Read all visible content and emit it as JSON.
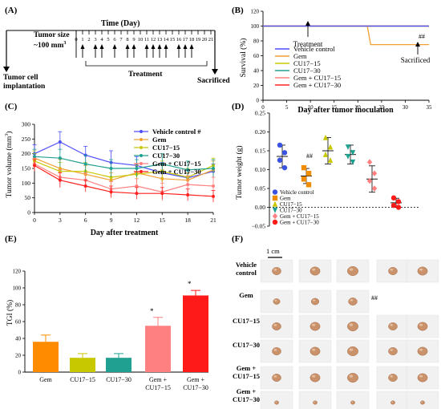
{
  "panels": {
    "A": {
      "label": "(A)",
      "time_title": "Time (Day)",
      "tumor_size_line1": "Tumor size",
      "tumor_size_line2": "~100 mm",
      "tumor_size_sup": "3",
      "implant_line1": "Tumor cell",
      "implant_line2": "implantation",
      "days": [
        "0",
        "1",
        "2",
        "3",
        "4",
        "5",
        "6",
        "7",
        "8",
        "9",
        "10",
        "11",
        "12",
        "13",
        "14",
        "15",
        "16",
        "17",
        "18",
        "19",
        "20",
        "21"
      ],
      "treatment_days": [
        1,
        3,
        4,
        6,
        8,
        9,
        11,
        12,
        13,
        14,
        16,
        17,
        18
      ],
      "treatment_label": "Treatment",
      "sacrificed_label": "Sacrificed"
    },
    "B": {
      "label": "(B)",
      "ylabel": "Survival (%)",
      "xlabel": "Day after tumor inoculation",
      "treatment_label": "Treatment",
      "sacrificed_label": "Sacrificed",
      "significance": "##",
      "legend": [
        "Vehicle control",
        "Gem",
        "CU17−15",
        "CU17−30",
        "Gem + CU17−15",
        "Gem + CU17−30"
      ],
      "colors": [
        "#4d4dff",
        "#f0a030",
        "#c8c800",
        "#20a090",
        "#ff8080",
        "#ff2020"
      ],
      "yticks": [
        "0",
        "20",
        "40",
        "60",
        "80",
        "100",
        "120"
      ],
      "xticks": [
        "0",
        "5",
        "10",
        "15",
        "20",
        "25",
        "30",
        "35"
      ]
    },
    "C": {
      "label": "(C)",
      "ylabel": "Tumor volume (mm",
      "ylabel_sup": "3",
      "ylabel_end": ")",
      "xlabel": "Day after treatment",
      "legend": [
        "Vehicle control #",
        "Gem",
        "CU17−15",
        "CU17−30",
        "Gem + CU17−15",
        "Gem + CU17−30"
      ],
      "yticks": [
        "0",
        "50",
        "100",
        "150",
        "200",
        "250",
        "300"
      ],
      "xticks": [
        "0",
        "3",
        "6",
        "9",
        "12",
        "15",
        "18",
        "21"
      ]
    },
    "D": {
      "label": "(D)",
      "ylabel": "Tumor weight (g)",
      "yticks": [
        "−0.05",
        "0.00",
        "0.05",
        "0.10",
        "0.15",
        "0.20",
        "0.25"
      ],
      "significance": "##",
      "legend": [
        "Vehicle control",
        "Gem",
        "CU17−15",
        "CU17−30",
        "Gem + CU17−15",
        "Gem + CU17−30"
      ]
    },
    "E": {
      "label": "(E)",
      "ylabel": "TGI (%)",
      "yticks": [
        "0",
        "20",
        "40",
        "60",
        "80",
        "100",
        "120"
      ],
      "categories": [
        "Gem",
        "CU17−15",
        "CU17−30",
        "Gem +\nCU17−15",
        "Gem +\nCU17−30"
      ],
      "star": "*"
    },
    "F": {
      "label": "(F)",
      "scale_label": "1 cm",
      "rows": [
        "Vehicle\ncontrol",
        "Gem",
        "CU17−15",
        "CU17−30",
        "Gem +\nCU17−15",
        "Gem +\nCU17−30"
      ],
      "gem_mark": "##",
      "tumors_per_row": [
        5,
        3,
        5,
        5,
        5,
        5
      ]
    }
  },
  "chart_data": [
    {
      "panel": "B",
      "type": "line",
      "xlabel": "Day after tumor inoculation",
      "ylabel": "Survival (%)",
      "xlim": [
        0,
        35
      ],
      "ylim": [
        0,
        120
      ],
      "series": [
        {
          "name": "Vehicle control",
          "x": [
            0,
            35
          ],
          "y": [
            100,
            100
          ]
        },
        {
          "name": "Gem",
          "x": [
            0,
            22,
            22.7,
            35
          ],
          "y": [
            100,
            100,
            75,
            75
          ]
        },
        {
          "name": "CU17−15",
          "x": [
            0,
            35
          ],
          "y": [
            100,
            100
          ]
        },
        {
          "name": "CU17−30",
          "x": [
            0,
            35
          ],
          "y": [
            100,
            100
          ]
        },
        {
          "name": "Gem + CU17−15",
          "x": [
            0,
            35
          ],
          "y": [
            100,
            100
          ]
        },
        {
          "name": "Gem + CU17−30",
          "x": [
            0,
            35
          ],
          "y": [
            100,
            100
          ]
        }
      ]
    },
    {
      "panel": "C",
      "type": "line",
      "xlabel": "Day after treatment",
      "ylabel": "Tumor volume (mm3)",
      "x": [
        0,
        3,
        6,
        9,
        12,
        15,
        18,
        21
      ],
      "ylim": [
        0,
        300
      ],
      "series": [
        {
          "name": "Vehicle control #",
          "values": [
            200,
            240,
            195,
            170,
            160,
            135,
            118,
            140
          ],
          "err": [
            30,
            35,
            30,
            40,
            30,
            35,
            25,
            25
          ]
        },
        {
          "name": "Gem",
          "values": [
            185,
            150,
            130,
            110,
            135,
            115,
            110,
            145
          ],
          "err": [
            25,
            30,
            30,
            25,
            30,
            30,
            25,
            30
          ]
        },
        {
          "name": "CU17−15",
          "values": [
            175,
            140,
            140,
            120,
            130,
            140,
            120,
            160
          ],
          "err": [
            25,
            30,
            30,
            30,
            30,
            35,
            30,
            25
          ]
        },
        {
          "name": "CU17−30",
          "values": [
            190,
            185,
            165,
            150,
            150,
            165,
            145,
            150
          ],
          "err": [
            25,
            30,
            30,
            30,
            30,
            35,
            30,
            30
          ]
        },
        {
          "name": "Gem + CU17−15",
          "values": [
            165,
            120,
            110,
            80,
            90,
            70,
            95,
            90
          ],
          "err": [
            20,
            25,
            25,
            25,
            25,
            30,
            30,
            30
          ]
        },
        {
          "name": "Gem + CU17−30",
          "values": [
            160,
            110,
            90,
            70,
            65,
            65,
            60,
            55
          ],
          "err": [
            20,
            25,
            20,
            20,
            20,
            20,
            20,
            20
          ]
        }
      ]
    },
    {
      "panel": "D",
      "type": "scatter",
      "ylabel": "Tumor weight (g)",
      "ylim": [
        -0.05,
        0.25
      ],
      "groups": [
        {
          "name": "Vehicle control",
          "points": [
            0.165,
            0.145,
            0.125,
            0.105
          ],
          "mean": 0.135,
          "sd": 0.03
        },
        {
          "name": "Gem",
          "points": [
            0.105,
            0.09,
            0.075,
            0.06
          ],
          "mean": 0.083,
          "sd": 0.02
        },
        {
          "name": "CU17−15",
          "points": [
            0.185,
            0.16,
            0.14,
            0.125
          ],
          "mean": 0.15,
          "sd": 0.035
        },
        {
          "name": "CU17−30",
          "points": [
            0.16,
            0.145,
            0.135,
            0.12
          ],
          "mean": 0.14,
          "sd": 0.025
        },
        {
          "name": "Gem + CU17−15",
          "points": [
            0.12,
            0.09,
            0.07,
            0.05
          ],
          "mean": 0.075,
          "sd": 0.035
        },
        {
          "name": "Gem + CU17−30",
          "points": [
            0.025,
            0.015,
            0.005,
            0.0
          ],
          "mean": 0.012,
          "sd": 0.012
        }
      ]
    },
    {
      "panel": "E",
      "type": "bar",
      "ylabel": "TGI (%)",
      "ylim": [
        0,
        120
      ],
      "categories": [
        "Gem",
        "CU17−15",
        "CU17−30",
        "Gem + CU17−15",
        "Gem + CU17−30"
      ],
      "values": [
        36,
        17,
        17,
        55,
        91
      ],
      "errors": [
        8,
        5,
        5,
        10,
        6
      ],
      "colors": [
        "#ff8c00",
        "#c8c800",
        "#20a090",
        "#ff8080",
        "#ff1a1a"
      ],
      "significant": [
        false,
        false,
        false,
        true,
        true
      ]
    }
  ]
}
